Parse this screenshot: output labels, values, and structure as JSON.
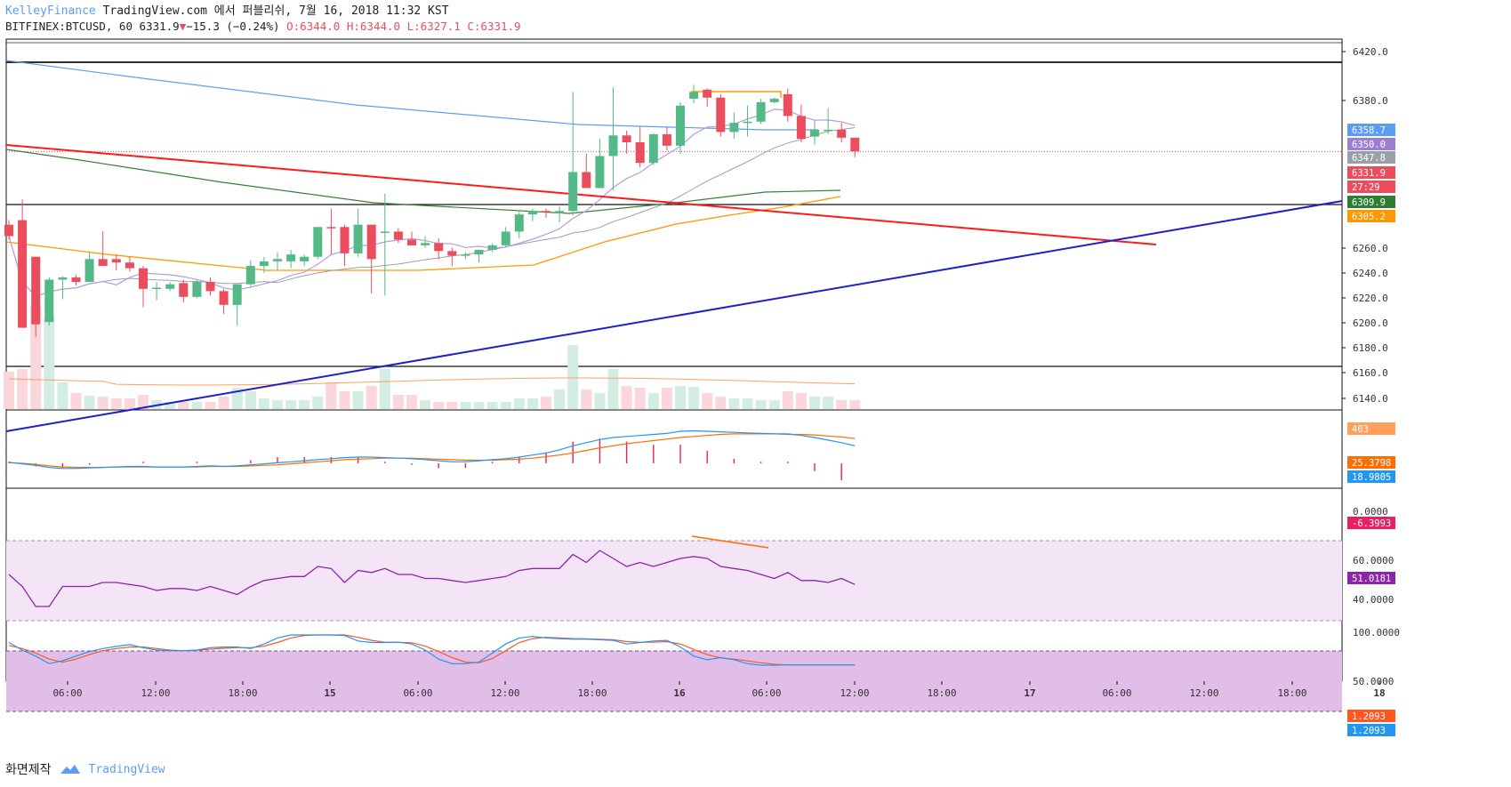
{
  "header": {
    "publisher": "KelleyFinance",
    "publish_line": "TradingView.com 에서 퍼블리쉬, 7월 16, 2018 11:32 KST",
    "symbol": "BITFINEX:BTCUSD, 60",
    "last": "6331.9",
    "change": "−15.3 (−0.24%)",
    "ohlc_o": "O:6344.0",
    "ohlc_h": "H:6344.0",
    "ohlc_l": "L:6327.1",
    "ohlc_c": "C:6331.9"
  },
  "footer": {
    "snapshot": "화면제작",
    "brand": "TradingView"
  },
  "colors": {
    "up": "#53b987",
    "down": "#eb4d5c",
    "upVol": "#d4ede2",
    "downVol": "#fbd6da",
    "ma200": "#5b9cf6",
    "ma_green": "#2e7d32",
    "ma_orange": "#ff9800",
    "ma_gray": "#9e9e9e",
    "ma_purple": "#7e57c2",
    "redTrend": "#ff1a1a",
    "blueTrend": "#1f1fcc",
    "macd": "#2196f3",
    "signal": "#ff6d00",
    "hist": "#e91e63",
    "rsi": "#8e24aa",
    "rsiBand": "#f3e5f5",
    "stochBand": "#e1bee7"
  },
  "chart_data": {
    "type": "candlestick",
    "symbol": "BITFINEX:BTCUSD",
    "interval": "60",
    "price_axis": {
      "ylim": [
        6140,
        6420
      ],
      "ticks": [
        "6420.0",
        "6380.0",
        "6260.0",
        "6240.0",
        "6220.0",
        "6200.0",
        "6180.0",
        "6160.0",
        "6140.0"
      ]
    },
    "time_axis": {
      "labels": [
        "06:00",
        "12:00",
        "18:00",
        "15",
        "06:00",
        "12:00",
        "18:00",
        "16",
        "06:00",
        "12:00",
        "18:00",
        "17",
        "06:00",
        "12:00",
        "18:00",
        "18"
      ]
    },
    "candles": [
      [
        6268,
        6272,
        6255,
        6258
      ],
      [
        6272,
        6290,
        6178,
        6178
      ],
      [
        6240,
        6240,
        6170,
        6181
      ],
      [
        6183,
        6222,
        6180,
        6220
      ],
      [
        6220,
        6223,
        6203,
        6222
      ],
      [
        6222,
        6224,
        6215,
        6218
      ],
      [
        6218,
        6245,
        6218,
        6238
      ],
      [
        6238,
        6262,
        6232,
        6232
      ],
      [
        6238,
        6242,
        6228,
        6235
      ],
      [
        6235,
        6240,
        6227,
        6230
      ],
      [
        6230,
        6232,
        6196,
        6212
      ],
      [
        6212,
        6218,
        6202,
        6213
      ],
      [
        6212,
        6218,
        6210,
        6216
      ],
      [
        6217,
        6220,
        6200,
        6205
      ],
      [
        6205,
        6220,
        6204,
        6218
      ],
      [
        6218,
        6222,
        6206,
        6210
      ],
      [
        6210,
        6212,
        6190,
        6198
      ],
      [
        6198,
        6215,
        6180,
        6216
      ],
      [
        6216,
        6237,
        6214,
        6232
      ],
      [
        6232,
        6240,
        6226,
        6236
      ],
      [
        6236,
        6244,
        6228,
        6238
      ],
      [
        6236,
        6246,
        6230,
        6242
      ],
      [
        6236,
        6242,
        6232,
        6240
      ],
      [
        6240,
        6266,
        6238,
        6266
      ],
      [
        6266,
        6282,
        6242,
        6265
      ],
      [
        6266,
        6268,
        6232,
        6243
      ],
      [
        6243,
        6282,
        6240,
        6268
      ],
      [
        6268,
        6268,
        6208,
        6238
      ],
      [
        6262,
        6295,
        6206,
        6262
      ],
      [
        6262,
        6265,
        6252,
        6255
      ],
      [
        6255,
        6262,
        6250,
        6250
      ],
      [
        6250,
        6258,
        6248,
        6252
      ],
      [
        6252,
        6256,
        6238,
        6245
      ],
      [
        6245,
        6248,
        6232,
        6241
      ],
      [
        6241,
        6244,
        6238,
        6242
      ],
      [
        6242,
        6246,
        6235,
        6246
      ],
      [
        6246,
        6252,
        6244,
        6250
      ],
      [
        6250,
        6266,
        6248,
        6262
      ],
      [
        6262,
        6280,
        6256,
        6277
      ],
      [
        6277,
        6282,
        6271,
        6280
      ],
      [
        6280,
        6282,
        6274,
        6279
      ],
      [
        6278,
        6284,
        6270,
        6280
      ],
      [
        6280,
        6384,
        6276,
        6314
      ],
      [
        6314,
        6330,
        6300,
        6300
      ],
      [
        6300,
        6343,
        6300,
        6328
      ],
      [
        6328,
        6388,
        6298,
        6346
      ],
      [
        6346,
        6350,
        6330,
        6340
      ],
      [
        6340,
        6354,
        6318,
        6322
      ],
      [
        6322,
        6348,
        6320,
        6347
      ],
      [
        6347,
        6353,
        6333,
        6337
      ],
      [
        6337,
        6375,
        6330,
        6372
      ],
      [
        6378,
        6390,
        6374,
        6384
      ],
      [
        6386,
        6387,
        6371,
        6379
      ],
      [
        6379,
        6382,
        6345,
        6349
      ],
      [
        6349,
        6366,
        6343,
        6357
      ],
      [
        6357,
        6372,
        6345,
        6358
      ],
      [
        6358,
        6378,
        6356,
        6375
      ],
      [
        6375,
        6379,
        6374,
        6378
      ],
      [
        6382,
        6387,
        6358,
        6363
      ],
      [
        6363,
        6373,
        6340,
        6343
      ],
      [
        6345,
        6359,
        6338,
        6351
      ],
      [
        6351,
        6370,
        6347,
        6351
      ],
      [
        6351,
        6357,
        6340,
        6344
      ],
      [
        6344,
        6344,
        6327,
        6332
      ]
    ],
    "indicators": {
      "moving_averages_last": [
        "6358.7",
        "6350.0",
        "6347.8",
        "6309.9",
        "6305.2"
      ],
      "countdown": "27:29",
      "volume_last": "403",
      "macd_last": {
        "signal": "25.3798",
        "macd": "18.9805",
        "hist": "-6.3993"
      },
      "macd_ticks": [
        "0.0000"
      ],
      "rsi_last": "51.0181",
      "rsi_ticks": [
        "60.0000",
        "40.0000"
      ],
      "stoch_last": [
        "1.2093",
        "1.2093"
      ],
      "stoch_ticks": [
        "100.0000",
        "50.0000"
      ]
    }
  }
}
